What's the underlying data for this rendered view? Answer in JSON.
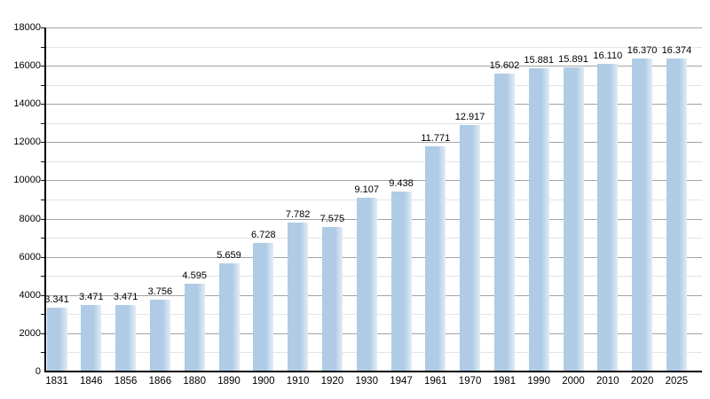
{
  "chart_data": {
    "type": "bar",
    "title": "",
    "xlabel": "",
    "ylabel": "",
    "categories": [
      "1831",
      "1846",
      "1856",
      "1866",
      "1880",
      "1890",
      "1900",
      "1910",
      "1920",
      "1930",
      "1947",
      "1961",
      "1970",
      "1981",
      "1990",
      "2000",
      "2010",
      "2020",
      "2025"
    ],
    "values": [
      3341,
      3471,
      3471,
      3756,
      4595,
      5659,
      6728,
      7782,
      7575,
      9107,
      9438,
      11771,
      12917,
      15602,
      15881,
      15891,
      16110,
      16370,
      16374
    ],
    "value_labels": [
      "3.341",
      "3.471",
      "3.471",
      "3.756",
      "4.595",
      "5.659",
      "6.728",
      "7.782",
      "7.575",
      "9.107",
      "9.438",
      "11.771",
      "12.917",
      "15.602",
      "15.881",
      "15.891",
      "16.110",
      "16.370",
      "16.374"
    ],
    "ylim": [
      0,
      18000
    ],
    "y_major_step": 2000,
    "y_minor_step": 1000,
    "y_tick_labels": [
      "0",
      "2000",
      "4000",
      "6000",
      "8000",
      "10000",
      "12000",
      "14000",
      "16000",
      "18000"
    ],
    "grid": true,
    "legend": false,
    "colors": {
      "bar_fill": "#afcbe5",
      "bar_fade": "#e2ecf6",
      "grid_major": "#a3a3a3",
      "grid_minor": "#e4e4e4",
      "axis": "#000000",
      "text": "#000000",
      "background": "#ffffff"
    }
  }
}
